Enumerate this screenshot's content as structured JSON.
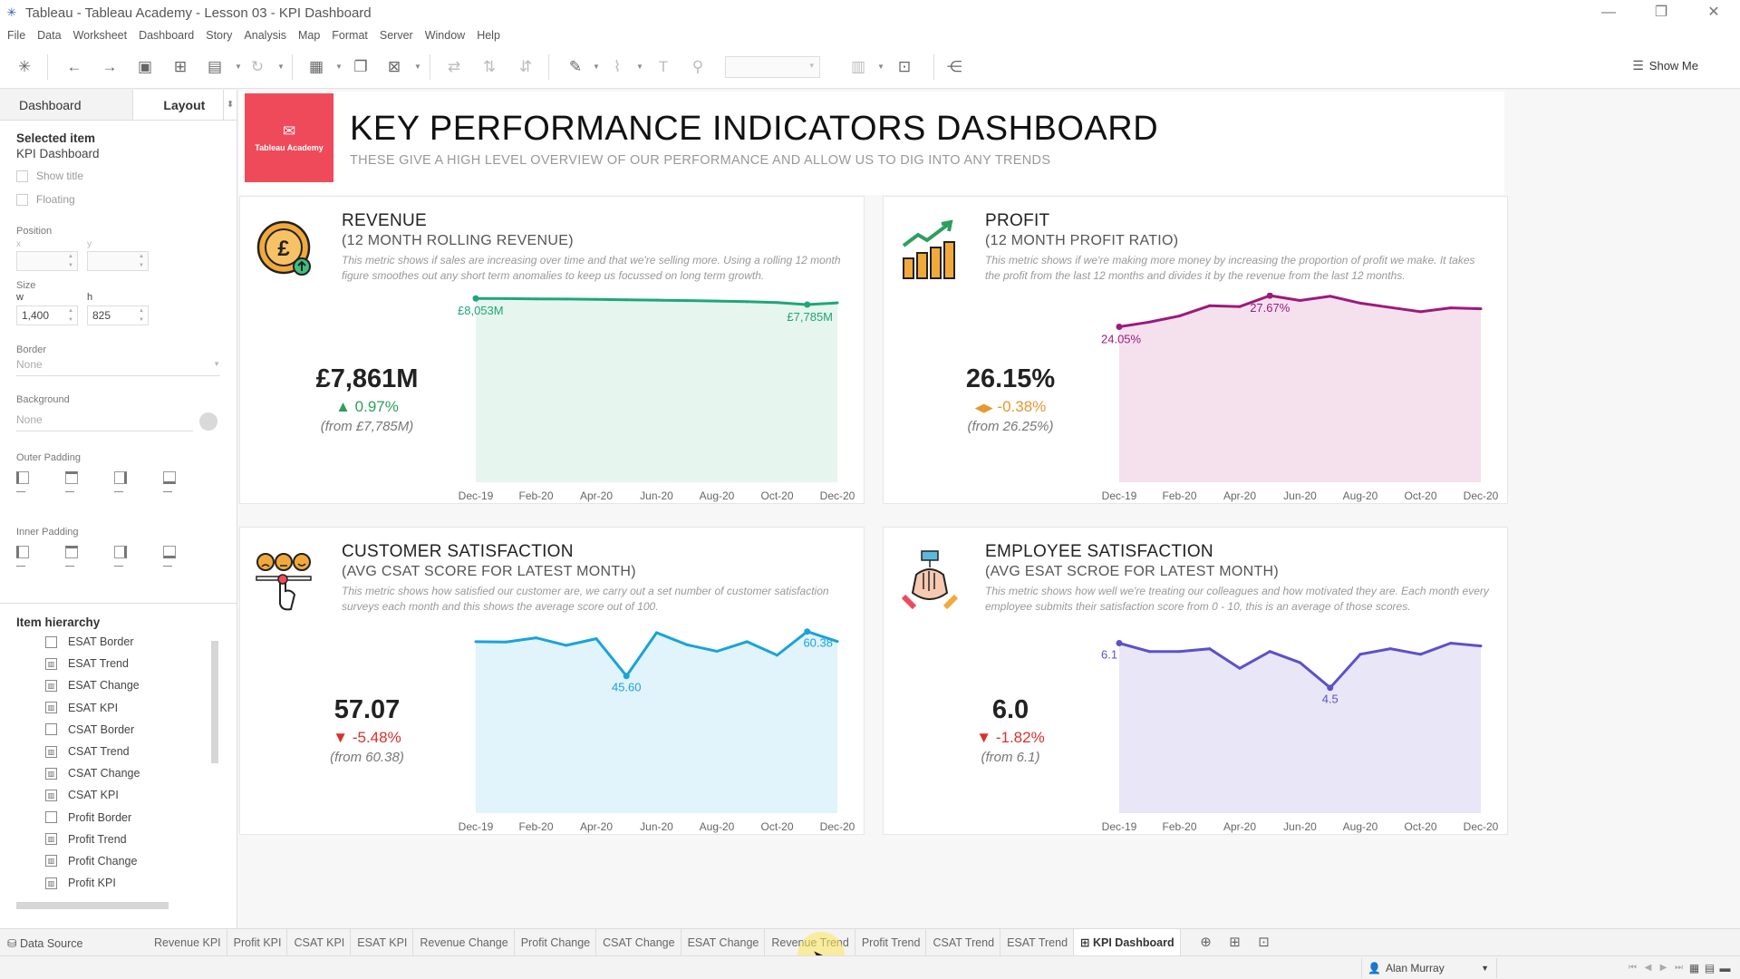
{
  "window": {
    "title": "Tableau - Tableau Academy - Lesson 03 - KPI Dashboard",
    "controls": [
      "—",
      "❐",
      "✕"
    ]
  },
  "menu": [
    "File",
    "Data",
    "Worksheet",
    "Dashboard",
    "Story",
    "Analysis",
    "Map",
    "Format",
    "Server",
    "Window",
    "Help"
  ],
  "toolbar": {
    "show_me_label": "Show Me"
  },
  "left_panel": {
    "tabs": [
      "Dashboard",
      "Layout"
    ],
    "active_tab": "Layout",
    "selected_item_label": "Selected item",
    "selected_item": "KPI Dashboard",
    "show_title_label": "Show title",
    "floating_label": "Floating",
    "position_label": "Position",
    "x_label": "x",
    "y_label": "y",
    "size_label": "Size",
    "w_label": "w",
    "h_label": "h",
    "width_value": "1,400",
    "height_value": "825",
    "border_label": "Border",
    "border_value": "None",
    "background_label": "Background",
    "background_value": "None",
    "outer_padding_label": "Outer Padding",
    "inner_padding_label": "Inner Padding",
    "hierarchy_title": "Item hierarchy",
    "hierarchy_items": [
      {
        "label": "ESAT Border",
        "kind": "border"
      },
      {
        "label": "ESAT Trend",
        "kind": "sheet"
      },
      {
        "label": "ESAT Change",
        "kind": "sheet"
      },
      {
        "label": "ESAT KPI",
        "kind": "sheet"
      },
      {
        "label": "CSAT Border",
        "kind": "border"
      },
      {
        "label": "CSAT Trend",
        "kind": "sheet"
      },
      {
        "label": "CSAT Change",
        "kind": "sheet"
      },
      {
        "label": "CSAT KPI",
        "kind": "sheet"
      },
      {
        "label": "Profit Border",
        "kind": "border"
      },
      {
        "label": "Profit Trend",
        "kind": "sheet"
      },
      {
        "label": "Profit Change",
        "kind": "sheet"
      },
      {
        "label": "Profit KPI",
        "kind": "sheet"
      }
    ]
  },
  "dashboard": {
    "logo_text": "Tableau Academy",
    "logo_color": "#ef4a5a",
    "title": "KEY PERFORMANCE INDICATORS DASHBOARD",
    "subtitle": "THESE GIVE A HIGH LEVEL OVERVIEW OF OUR PERFORMANCE AND ALLOW US TO DIG INTO ANY TRENDS",
    "cards": [
      {
        "id": "revenue",
        "icon": "pound-coin-icon",
        "title": "REVENUE",
        "subtitle": "(12 MONTH ROLLING REVENUE)",
        "description": "This metric shows if sales are increasing over time and that we're selling more. Using a rolling 12 month figure smoothes out any short term anomalies to keep us focussed on long term growth.",
        "kpi": "£7,861M",
        "change": "0.97%",
        "change_direction": "up",
        "change_color": "#2e9e5e",
        "from": "(from £7,785M)"
      },
      {
        "id": "profit",
        "icon": "growth-chart-icon",
        "title": "PROFIT",
        "subtitle": "(12 MONTH PROFIT RATIO)",
        "description": "This metric shows if we're making more money by increasing the proportion of profit we make. It takes the profit from the last 12 months and divides it by the revenue from the last 12 months.",
        "kpi": "26.15%",
        "change": "-0.38%",
        "change_direction": "neutral",
        "change_color": "#e8962e",
        "from": "(from 26.25%)"
      },
      {
        "id": "csat",
        "icon": "satisfaction-faces-icon",
        "title": "CUSTOMER SATISFACTION",
        "subtitle": "(AVG CSAT SCORE FOR LATEST MONTH)",
        "description": "This metric shows how satisfied our customer are, we carry out a set number of customer satisfaction surveys each month and this shows the average score out of 100.",
        "kpi": "57.07",
        "change": "-5.48%",
        "change_direction": "down",
        "change_color": "#d9312b",
        "from": "(from 60.38)"
      },
      {
        "id": "esat",
        "icon": "team-hands-icon",
        "title": "EMPLOYEE SATISFACTION",
        "subtitle": "(AVG ESAT SCROE FOR LATEST MONTH)",
        "description": "This metric shows how well we're treating our colleagues and how motivated they are. Each month every employee submits their satisfaction score from 0 - 10, this is an average of those scores.",
        "kpi": "6.0",
        "change": "-1.82%",
        "change_direction": "down",
        "change_color": "#d9312b",
        "from": "(from 6.1)"
      }
    ]
  },
  "chart_data": [
    {
      "type": "area",
      "id": "revenue",
      "color": "#1fa67a",
      "fill": "#e6f5ee",
      "x": [
        "Dec-19",
        "Jan-20",
        "Feb-20",
        "Mar-20",
        "Apr-20",
        "May-20",
        "Jun-20",
        "Jul-20",
        "Aug-20",
        "Sep-20",
        "Oct-20",
        "Nov-20",
        "Dec-20"
      ],
      "x_ticks": [
        "Dec-19",
        "Feb-20",
        "Apr-20",
        "Jun-20",
        "Aug-20",
        "Oct-20",
        "Dec-20"
      ],
      "values": [
        8053,
        8045,
        8035,
        8025,
        8010,
        7995,
        7980,
        7960,
        7940,
        7910,
        7875,
        7785,
        7861
      ],
      "labels": [
        {
          "index": 0,
          "text": "£8,053M"
        },
        {
          "index": 11,
          "text": "£7,785M"
        }
      ],
      "ylim": [
        0,
        8300
      ]
    },
    {
      "type": "area",
      "id": "profit",
      "color": "#9b1b7c",
      "fill": "#f5e1ee",
      "x": [
        "Dec-19",
        "Jan-20",
        "Feb-20",
        "Mar-20",
        "Apr-20",
        "May-20",
        "Jun-20",
        "Jul-20",
        "Aug-20",
        "Sep-20",
        "Oct-20",
        "Nov-20",
        "Dec-20"
      ],
      "x_ticks": [
        "Dec-19",
        "Feb-20",
        "Apr-20",
        "Jun-20",
        "Aug-20",
        "Oct-20",
        "Dec-20"
      ],
      "values": [
        24.05,
        24.6,
        25.3,
        26.5,
        26.4,
        27.67,
        27.1,
        27.6,
        26.8,
        26.3,
        25.8,
        26.25,
        26.15
      ],
      "labels": [
        {
          "index": 0,
          "text": "24.05%"
        },
        {
          "index": 5,
          "text": "27.67%"
        }
      ],
      "ylim": [
        6,
        28
      ]
    },
    {
      "type": "area",
      "id": "csat",
      "color": "#1aa3d9",
      "fill": "#e1f3fb",
      "x": [
        "Dec-19",
        "Jan-20",
        "Feb-20",
        "Mar-20",
        "Apr-20",
        "May-20",
        "Jun-20",
        "Jul-20",
        "Aug-20",
        "Sep-20",
        "Oct-20",
        "Nov-20",
        "Dec-20"
      ],
      "x_ticks": [
        "Dec-19",
        "Feb-20",
        "Apr-20",
        "Jun-20",
        "Aug-20",
        "Oct-20",
        "Dec-20"
      ],
      "values": [
        57.0,
        56.9,
        58.3,
        55.8,
        58.0,
        45.6,
        60.0,
        56.0,
        53.8,
        57.0,
        52.5,
        60.38,
        57.07
      ],
      "labels": [
        {
          "index": 5,
          "text": "45.60"
        },
        {
          "index": 11,
          "text": "60.38"
        }
      ],
      "ylim": [
        0,
        63
      ]
    },
    {
      "type": "area",
      "id": "esat",
      "color": "#5b52c9",
      "fill": "#e8e6f7",
      "x": [
        "Dec-19",
        "Jan-20",
        "Feb-20",
        "Mar-20",
        "Apr-20",
        "May-20",
        "Jun-20",
        "Jul-20",
        "Aug-20",
        "Sep-20",
        "Oct-20",
        "Nov-20",
        "Dec-20"
      ],
      "x_ticks": [
        "Dec-19",
        "Feb-20",
        "Apr-20",
        "Jun-20",
        "Aug-20",
        "Oct-20",
        "Dec-20"
      ],
      "values": [
        6.1,
        5.8,
        5.8,
        5.9,
        5.2,
        5.8,
        5.4,
        4.5,
        5.7,
        5.9,
        5.7,
        6.1,
        6.0
      ],
      "labels": [
        {
          "index": 0,
          "text": "6.1"
        },
        {
          "index": 7,
          "text": "4.5"
        }
      ],
      "ylim": [
        0,
        6.8
      ]
    }
  ],
  "sheet_tabs": {
    "data_source": "Data Source",
    "tabs": [
      "Revenue KPI",
      "Profit KPI",
      "CSAT KPI",
      "ESAT KPI",
      "Revenue Change",
      "Profit Change",
      "CSAT Change",
      "ESAT Change",
      "Revenue Trend",
      "Profit Trend",
      "CSAT Trend",
      "ESAT Trend",
      "KPI Dashboard"
    ],
    "active_tab": "KPI Dashboard"
  },
  "status": {
    "user": "Alan Murray"
  }
}
